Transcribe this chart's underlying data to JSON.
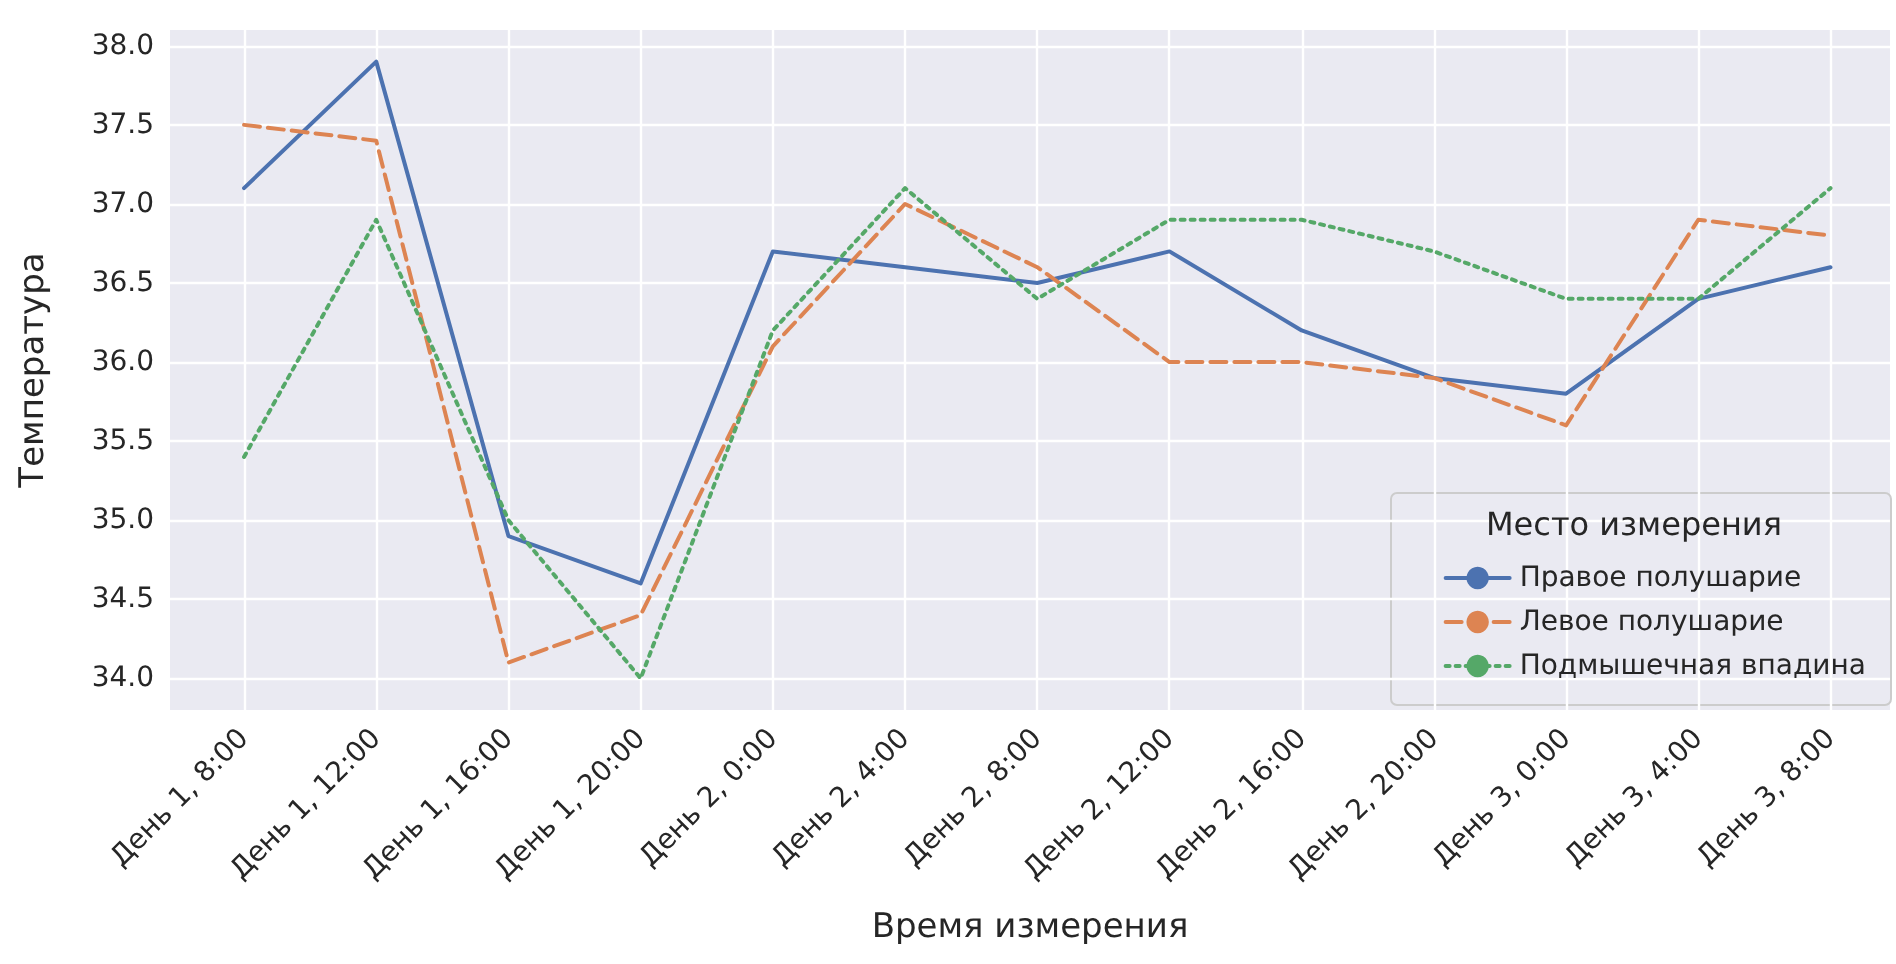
{
  "chart_data": {
    "type": "line",
    "xlabel": "Время измерения",
    "ylabel": "Температура",
    "legend_title": "Место измерения",
    "categories": [
      "День 1, 8:00",
      "День 1, 12:00",
      "День 1, 16:00",
      "День 1, 20:00",
      "День 2, 0:00",
      "День 2, 4:00",
      "День 2, 8:00",
      "День 2, 12:00",
      "День 2, 16:00",
      "День 2, 20:00",
      "День 3, 0:00",
      "День 3, 4:00",
      "День 3, 8:00"
    ],
    "series": [
      {
        "name": "Правое полушарие",
        "color": "#4c72b0",
        "line_style": "solid",
        "values": [
          37.1,
          37.9,
          34.9,
          34.6,
          36.7,
          36.6,
          36.5,
          36.7,
          36.2,
          35.9,
          35.8,
          36.4,
          36.6
        ]
      },
      {
        "name": "Левое полушарие",
        "color": "#dd8452",
        "line_style": "dashed",
        "values": [
          37.5,
          37.4,
          34.1,
          34.4,
          36.1,
          37.0,
          36.6,
          36.0,
          36.0,
          35.9,
          35.6,
          36.9,
          36.8
        ]
      },
      {
        "name": "Подмышечная впадина",
        "color": "#55a868",
        "line_style": "dotted",
        "values": [
          35.4,
          36.9,
          35.0,
          34.0,
          36.2,
          37.1,
          36.4,
          36.9,
          36.9,
          36.7,
          36.4,
          36.4,
          37.1
        ]
      }
    ],
    "ylim": [
      33.8,
      38.1
    ],
    "yticks": [
      {
        "value": 34,
        "label": "34.0"
      },
      {
        "value": 34.5,
        "label": "34.5"
      },
      {
        "value": 35,
        "label": "35.0"
      },
      {
        "value": 35.5,
        "label": "35.5"
      },
      {
        "value": 36,
        "label": "36.0"
      },
      {
        "value": 36.5,
        "label": "36.5"
      },
      {
        "value": 37,
        "label": "37.0"
      },
      {
        "value": 37.5,
        "label": "37.5"
      },
      {
        "value": 38,
        "label": "38.0"
      }
    ],
    "grid": true,
    "legend": "bottom right",
    "marker": "none"
  }
}
